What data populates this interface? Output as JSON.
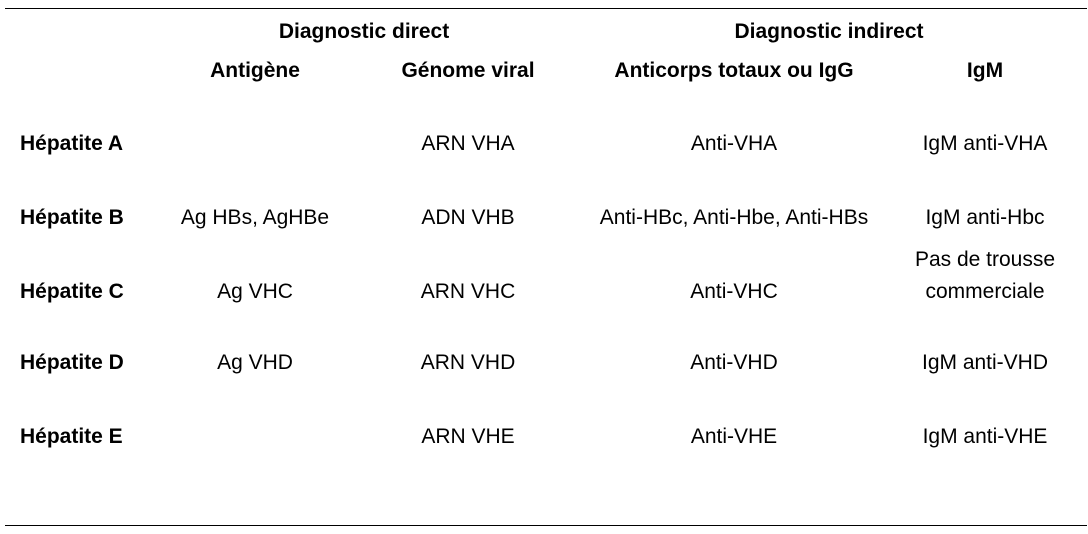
{
  "table": {
    "group_headers": {
      "direct": "Diagnostic direct",
      "indirect": "Diagnostic indirect"
    },
    "column_headers": {
      "antigen": "Antigène",
      "genome": "Génome viral",
      "antibodies": "Anticorps totaux ou IgG",
      "igm": "IgM"
    },
    "rows": [
      {
        "name": "Hépatite A",
        "antigen": "",
        "genome": "ARN VHA",
        "antibodies": "Anti-VHA",
        "igm": "IgM anti-VHA"
      },
      {
        "name": "Hépatite B",
        "antigen": "Ag HBs, AgHBe",
        "genome": "ADN VHB",
        "antibodies": "Anti-HBc, Anti-Hbe, Anti-HBs",
        "igm": "IgM anti-Hbc"
      },
      {
        "name": "Hépatite C",
        "antigen": "Ag VHC",
        "genome": "ARN VHC",
        "antibodies": "Anti-VHC",
        "igm": "Pas de trousse commerciale"
      },
      {
        "name": "Hépatite D",
        "antigen": "Ag VHD",
        "genome": "ARN VHD",
        "antibodies": "Anti-VHD",
        "igm": "IgM anti-VHD"
      },
      {
        "name": "Hépatite E",
        "antigen": "",
        "genome": "ARN VHE",
        "antibodies": "Anti-VHE",
        "igm": "IgM anti-VHE"
      }
    ]
  }
}
